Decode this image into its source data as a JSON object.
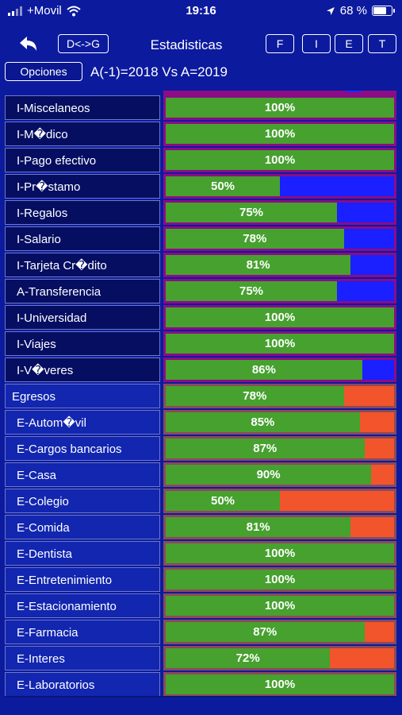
{
  "status_bar": {
    "carrier": "+Movil",
    "time": "19:16",
    "battery": "68 %",
    "battery_level": 0.68
  },
  "nav": {
    "back_icon": "back-arrow-icon",
    "toggle_button": "D<->G",
    "title": "Estadisticas",
    "filter_buttons": [
      "F",
      "I",
      "E",
      "T"
    ]
  },
  "options": {
    "button_label": "Opciones",
    "comparison_label": "A(-1)=2018 Vs A=2019"
  },
  "colors": {
    "background": "#0c1a9e",
    "bar_green": "#46a12e",
    "income_track_blue": "#1a20ff",
    "income_border_purple": "#8b0c86",
    "expense_track_orange": "#f2552b"
  },
  "rows": [
    {
      "label": "I-Miscelaneos",
      "percent": 100,
      "pct_label": "100%",
      "kind": "income"
    },
    {
      "label": "I-M�dico",
      "percent": 100,
      "pct_label": "100%",
      "kind": "income"
    },
    {
      "label": "I-Pago efectivo",
      "percent": 100,
      "pct_label": "100%",
      "kind": "income"
    },
    {
      "label": "I-Pr�stamo",
      "percent": 50,
      "pct_label": "50%",
      "kind": "income"
    },
    {
      "label": "I-Regalos",
      "percent": 75,
      "pct_label": "75%",
      "kind": "income"
    },
    {
      "label": "I-Salario",
      "percent": 78,
      "pct_label": "78%",
      "kind": "income"
    },
    {
      "label": "I-Tarjeta Cr�dito",
      "percent": 81,
      "pct_label": "81%",
      "kind": "income"
    },
    {
      "label": "A-Transferencia",
      "percent": 75,
      "pct_label": "75%",
      "kind": "income"
    },
    {
      "label": "I-Universidad",
      "percent": 100,
      "pct_label": "100%",
      "kind": "income"
    },
    {
      "label": "I-Viajes",
      "percent": 100,
      "pct_label": "100%",
      "kind": "income"
    },
    {
      "label": "I-V�veres",
      "percent": 86,
      "pct_label": "86%",
      "kind": "income"
    },
    {
      "label": "Egresos",
      "percent": 78,
      "pct_label": "78%",
      "kind": "group"
    },
    {
      "label": "E-Autom�vil",
      "percent": 85,
      "pct_label": "85%",
      "kind": "expense"
    },
    {
      "label": "E-Cargos bancarios",
      "percent": 87,
      "pct_label": "87%",
      "kind": "expense"
    },
    {
      "label": "E-Casa",
      "percent": 90,
      "pct_label": "90%",
      "kind": "expense"
    },
    {
      "label": "E-Colegio",
      "percent": 50,
      "pct_label": "50%",
      "kind": "expense"
    },
    {
      "label": "E-Comida",
      "percent": 81,
      "pct_label": "81%",
      "kind": "expense"
    },
    {
      "label": "E-Dentista",
      "percent": 100,
      "pct_label": "100%",
      "kind": "expense"
    },
    {
      "label": "E-Entretenimiento",
      "percent": 100,
      "pct_label": "100%",
      "kind": "expense"
    },
    {
      "label": "E-Estacionamiento",
      "percent": 100,
      "pct_label": "100%",
      "kind": "expense"
    },
    {
      "label": "E-Farmacia",
      "percent": 87,
      "pct_label": "87%",
      "kind": "expense"
    },
    {
      "label": "E-Interes",
      "percent": 72,
      "pct_label": "72%",
      "kind": "expense"
    },
    {
      "label": "E-Laboratorios",
      "percent": 100,
      "pct_label": "100%",
      "kind": "expense"
    }
  ]
}
